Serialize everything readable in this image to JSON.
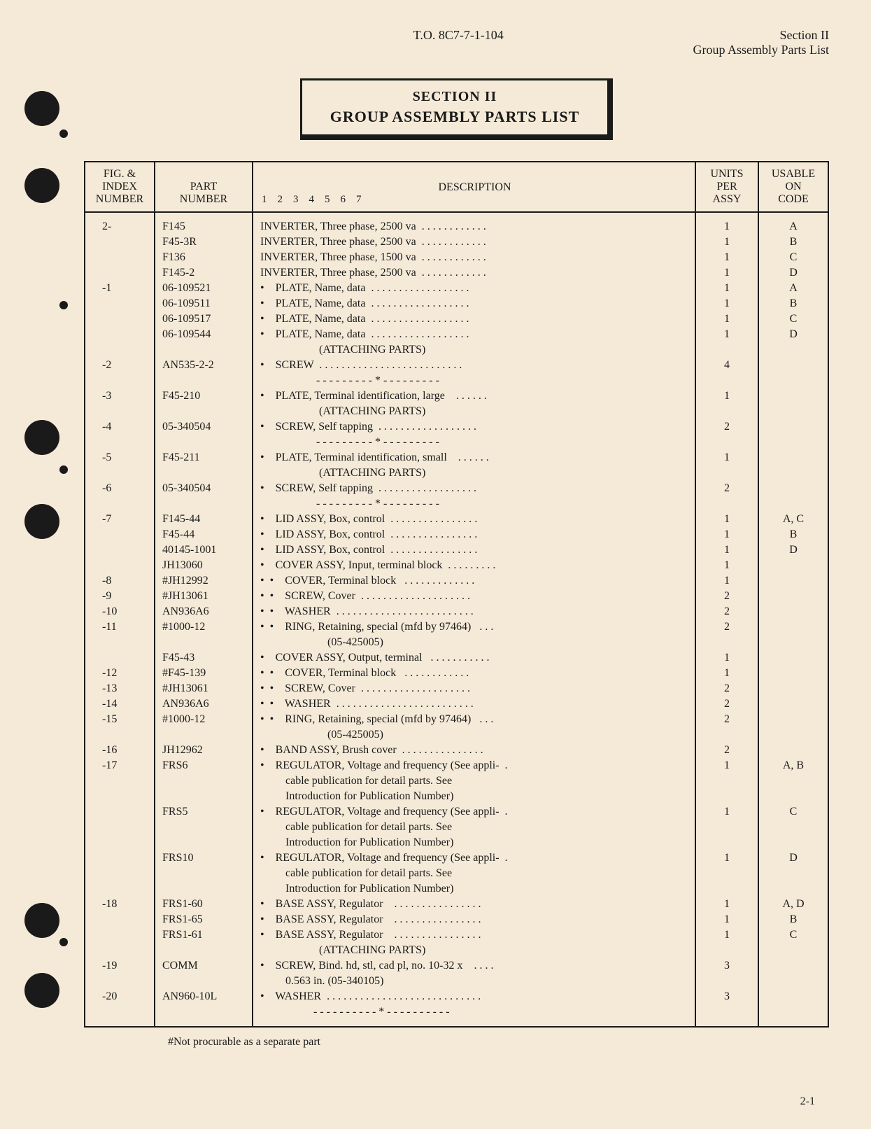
{
  "doc_number": "T.O. 8C7-7-1-104",
  "section_label": "Section II",
  "section_subtitle": "Group Assembly Parts List",
  "title_line1": "SECTION II",
  "title_line2": "GROUP ASSEMBLY PARTS LIST",
  "columns": {
    "c1": "FIG. &\nINDEX\nNUMBER",
    "c2": "PART\nNUMBER",
    "c3_top": "DESCRIPTION",
    "c3_bottom": "1    2    3    4    5    6    7",
    "c4": "UNITS\nPER\nASSY",
    "c5": "USABLE\nON\nCODE"
  },
  "rows": [
    {
      "idx": "2-",
      "part": "F145",
      "desc": "INVERTER, Three phase, 2500 va  . . . . . . . . . . . .",
      "units": "1",
      "code": "A"
    },
    {
      "idx": "",
      "part": "F45-3R",
      "desc": "INVERTER, Three phase, 2500 va  . . . . . . . . . . . .",
      "units": "1",
      "code": "B"
    },
    {
      "idx": "",
      "part": "F136",
      "desc": "INVERTER, Three phase, 1500 va  . . . . . . . . . . . .",
      "units": "1",
      "code": "C"
    },
    {
      "idx": "",
      "part": "F145-2",
      "desc": "INVERTER, Three phase, 2500 va  . . . . . . . . . . . .",
      "units": "1",
      "code": "D"
    },
    {
      "idx": "-1",
      "part": "06-109521",
      "desc": "•    PLATE, Name, data  . . . . . . . . . . . . . . . . . .",
      "units": "1",
      "code": "A"
    },
    {
      "idx": "",
      "part": "06-109511",
      "desc": "•    PLATE, Name, data  . . . . . . . . . . . . . . . . . .",
      "units": "1",
      "code": "B"
    },
    {
      "idx": "",
      "part": "06-109517",
      "desc": "•    PLATE, Name, data  . . . . . . . . . . . . . . . . . .",
      "units": "1",
      "code": "C"
    },
    {
      "idx": "",
      "part": "06-109544",
      "desc": "•    PLATE, Name, data  . . . . . . . . . . . . . . . . . .",
      "units": "1",
      "code": "D"
    },
    {
      "idx": "",
      "part": "",
      "desc": "                     (ATTACHING PARTS)",
      "units": "",
      "code": ""
    },
    {
      "idx": "-2",
      "part": "AN535-2-2",
      "desc": "•    SCREW  . . . . . . . . . . . . . . . . . . . . . . . . . .",
      "units": "4",
      "code": ""
    },
    {
      "idx": "",
      "part": "",
      "desc": "                    - - - - - - - - - * - - - - - - - - -",
      "units": "",
      "code": ""
    },
    {
      "idx": "-3",
      "part": "F45-210",
      "desc": "•    PLATE, Terminal identification, large    . . . . . .",
      "units": "1",
      "code": ""
    },
    {
      "idx": "",
      "part": "",
      "desc": "                     (ATTACHING PARTS)",
      "units": "",
      "code": ""
    },
    {
      "idx": "-4",
      "part": "05-340504",
      "desc": "•    SCREW, Self tapping  . . . . . . . . . . . . . . . . . .",
      "units": "2",
      "code": ""
    },
    {
      "idx": "",
      "part": "",
      "desc": "                    - - - - - - - - - * - - - - - - - - -",
      "units": "",
      "code": ""
    },
    {
      "idx": "-5",
      "part": "F45-211",
      "desc": "•    PLATE, Terminal identification, small    . . . . . .",
      "units": "1",
      "code": ""
    },
    {
      "idx": "",
      "part": "",
      "desc": "                     (ATTACHING PARTS)",
      "units": "",
      "code": ""
    },
    {
      "idx": "-6",
      "part": "05-340504",
      "desc": "•    SCREW, Self tapping  . . . . . . . . . . . . . . . . . .",
      "units": "2",
      "code": ""
    },
    {
      "idx": "",
      "part": "",
      "desc": "                    - - - - - - - - - * - - - - - - - - -",
      "units": "",
      "code": ""
    },
    {
      "idx": "-7",
      "part": "F145-44",
      "desc": "•    LID ASSY, Box, control  . . . . . . . . . . . . . . . .",
      "units": "1",
      "code": "A, C"
    },
    {
      "idx": "",
      "part": "F45-44",
      "desc": "•    LID ASSY, Box, control  . . . . . . . . . . . . . . . .",
      "units": "1",
      "code": "B"
    },
    {
      "idx": "",
      "part": "40145-1001",
      "desc": "•    LID ASSY, Box, control  . . . . . . . . . . . . . . . .",
      "units": "1",
      "code": "D"
    },
    {
      "idx": "",
      "part": "JH13060",
      "desc": "•    COVER ASSY, Input, terminal block  . . . . . . . . .",
      "units": "1",
      "code": ""
    },
    {
      "idx": "-8",
      "part": "#JH12992",
      "desc": "•  •    COVER, Terminal block   . . . . . . . . . . . . .",
      "units": "1",
      "code": ""
    },
    {
      "idx": "-9",
      "part": "#JH13061",
      "desc": "•  •    SCREW, Cover  . . . . . . . . . . . . . . . . . . . .",
      "units": "2",
      "code": ""
    },
    {
      "idx": "-10",
      "part": "AN936A6",
      "desc": "•  •    WASHER  . . . . . . . . . . . . . . . . . . . . . . . . .",
      "units": "2",
      "code": ""
    },
    {
      "idx": "-11",
      "part": "#1000-12",
      "desc": "•  •    RING, Retaining, special (mfd by 97464)   . . .",
      "units": "2",
      "code": ""
    },
    {
      "idx": "",
      "part": "",
      "desc": "                        (05-425005)",
      "units": "",
      "code": ""
    },
    {
      "idx": "",
      "part": "F45-43",
      "desc": "•    COVER ASSY, Output, terminal   . . . . . . . . . . .",
      "units": "1",
      "code": ""
    },
    {
      "idx": "-12",
      "part": "#F45-139",
      "desc": "•  •    COVER, Terminal block   . . . . . . . . . . . .",
      "units": "1",
      "code": ""
    },
    {
      "idx": "-13",
      "part": "#JH13061",
      "desc": "•  •    SCREW, Cover  . . . . . . . . . . . . . . . . . . . .",
      "units": "2",
      "code": ""
    },
    {
      "idx": "-14",
      "part": "AN936A6",
      "desc": "•  •    WASHER  . . . . . . . . . . . . . . . . . . . . . . . . .",
      "units": "2",
      "code": ""
    },
    {
      "idx": "-15",
      "part": "#1000-12",
      "desc": "•  •    RING, Retaining, special (mfd by 97464)   . . .",
      "units": "2",
      "code": ""
    },
    {
      "idx": "",
      "part": "",
      "desc": "                        (05-425005)",
      "units": "",
      "code": ""
    },
    {
      "idx": "-16",
      "part": "JH12962",
      "desc": "•    BAND ASSY, Brush cover  . . . . . . . . . . . . . . .",
      "units": "2",
      "code": ""
    },
    {
      "idx": "-17",
      "part": "FRS6",
      "desc": "•    REGULATOR, Voltage and frequency (See appli-  .",
      "units": "1",
      "code": "A, B"
    },
    {
      "idx": "",
      "part": "",
      "desc": "         cable publication for detail parts. See",
      "units": "",
      "code": ""
    },
    {
      "idx": "",
      "part": "",
      "desc": "         Introduction for Publication Number)",
      "units": "",
      "code": ""
    },
    {
      "idx": "",
      "part": "FRS5",
      "desc": "•    REGULATOR, Voltage and frequency (See appli-  .",
      "units": "1",
      "code": "C"
    },
    {
      "idx": "",
      "part": "",
      "desc": "         cable publication for detail parts. See",
      "units": "",
      "code": ""
    },
    {
      "idx": "",
      "part": "",
      "desc": "         Introduction for Publication Number)",
      "units": "",
      "code": ""
    },
    {
      "idx": "",
      "part": "FRS10",
      "desc": "•    REGULATOR, Voltage and frequency (See appli-  .",
      "units": "1",
      "code": "D"
    },
    {
      "idx": "",
      "part": "",
      "desc": "         cable publication for detail parts. See",
      "units": "",
      "code": ""
    },
    {
      "idx": "",
      "part": "",
      "desc": "         Introduction for Publication Number)",
      "units": "",
      "code": ""
    },
    {
      "idx": "-18",
      "part": "FRS1-60",
      "desc": "•    BASE ASSY, Regulator    . . . . . . . . . . . . . . . .",
      "units": "1",
      "code": "A, D"
    },
    {
      "idx": "",
      "part": "FRS1-65",
      "desc": "•    BASE ASSY, Regulator    . . . . . . . . . . . . . . . .",
      "units": "1",
      "code": "B"
    },
    {
      "idx": "",
      "part": "FRS1-61",
      "desc": "•    BASE ASSY, Regulator    . . . . . . . . . . . . . . . .",
      "units": "1",
      "code": "C"
    },
    {
      "idx": "",
      "part": "",
      "desc": "                     (ATTACHING PARTS)",
      "units": "",
      "code": ""
    },
    {
      "idx": "-19",
      "part": "COMM",
      "desc": "•    SCREW, Bind. hd, stl, cad pl, no. 10-32 x    . . . .",
      "units": "3",
      "code": ""
    },
    {
      "idx": "",
      "part": "",
      "desc": "         0.563 in. (05-340105)",
      "units": "",
      "code": ""
    },
    {
      "idx": "-20",
      "part": "AN960-10L",
      "desc": "•    WASHER  . . . . . . . . . . . . . . . . . . . . . . . . . . . .",
      "units": "3",
      "code": ""
    },
    {
      "idx": "",
      "part": "",
      "desc": "                   - - - - - - - - - - * - - - - - - - - - -",
      "units": "",
      "code": ""
    }
  ],
  "footnote": "#Not procurable as a separate part",
  "page_number": "2-1",
  "holes": [
    130,
    240,
    600,
    720,
    1290,
    1390
  ],
  "holes_small": [
    180,
    420,
    660,
    1340
  ]
}
